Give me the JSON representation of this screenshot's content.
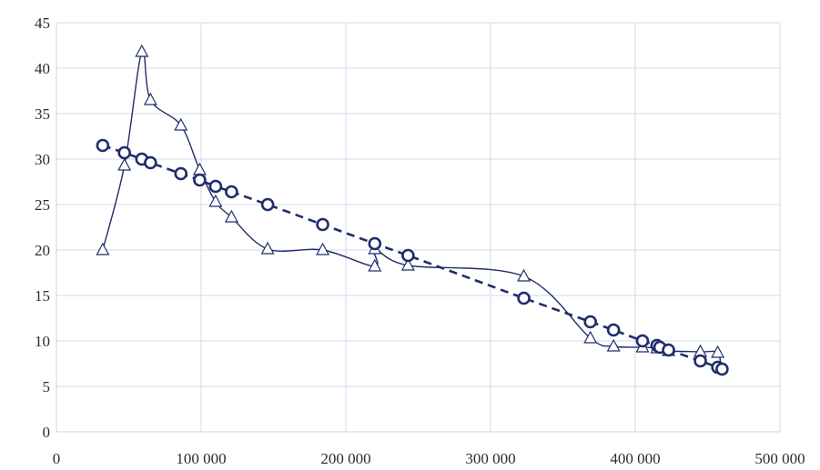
{
  "chart_data": {
    "type": "scatter",
    "title": "",
    "xlabel": "",
    "ylabel": "",
    "xlim": [
      0,
      500000
    ],
    "ylim": [
      0,
      45
    ],
    "x_ticks": [
      0,
      100000,
      200000,
      300000,
      400000,
      500000
    ],
    "x_tick_labels": [
      "0",
      "100 000",
      "200 000",
      "300 000",
      "400 000",
      "500 000"
    ],
    "y_ticks": [
      0,
      5,
      10,
      15,
      20,
      25,
      30,
      35,
      40,
      45
    ],
    "y_tick_labels": [
      "0",
      "5",
      "10",
      "15",
      "20",
      "25",
      "30",
      "35",
      "40",
      "45"
    ],
    "grid": true,
    "legend": false,
    "series": [
      {
        "marker": "triangle",
        "line_style": "solid-smooth",
        "color": "#1f2d6b",
        "points": [
          [
            32000,
            20.0
          ],
          [
            47000,
            29.3
          ],
          [
            59000,
            41.8
          ],
          [
            65000,
            36.5
          ],
          [
            86000,
            33.7
          ],
          [
            99000,
            28.8
          ],
          [
            110000,
            25.3
          ],
          [
            121000,
            23.6
          ],
          [
            146000,
            20.1
          ],
          [
            184000,
            20.0
          ],
          [
            220000,
            18.2
          ],
          [
            220000,
            20.1
          ],
          [
            243000,
            18.3
          ],
          [
            323000,
            17.1
          ],
          [
            369000,
            10.3
          ],
          [
            385000,
            9.4
          ],
          [
            405000,
            9.3
          ],
          [
            415000,
            9.2
          ],
          [
            423000,
            8.9
          ],
          [
            445000,
            8.8
          ],
          [
            457000,
            8.7
          ],
          [
            459000,
            7.0
          ]
        ]
      },
      {
        "marker": "circle",
        "line_style": "dashed",
        "color": "#1f2d6b",
        "points": [
          [
            32000,
            31.5
          ],
          [
            47000,
            30.7
          ],
          [
            59000,
            30.0
          ],
          [
            65000,
            29.6
          ],
          [
            86000,
            28.4
          ],
          [
            99000,
            27.7
          ],
          [
            110000,
            27.0
          ],
          [
            121000,
            26.4
          ],
          [
            146000,
            25.0
          ],
          [
            184000,
            22.8
          ],
          [
            220000,
            20.7
          ],
          [
            243000,
            19.4
          ],
          [
            323000,
            14.7
          ],
          [
            369000,
            12.1
          ],
          [
            385000,
            11.2
          ],
          [
            405000,
            10.0
          ],
          [
            415000,
            9.5
          ],
          [
            417000,
            9.3
          ],
          [
            423000,
            9.0
          ],
          [
            445000,
            7.8
          ],
          [
            457000,
            7.1
          ],
          [
            460000,
            6.9
          ]
        ]
      }
    ]
  },
  "colors": {
    "series": "#1f2d6b",
    "grid": "#d3d8ee",
    "text": "#2b2b2b"
  }
}
